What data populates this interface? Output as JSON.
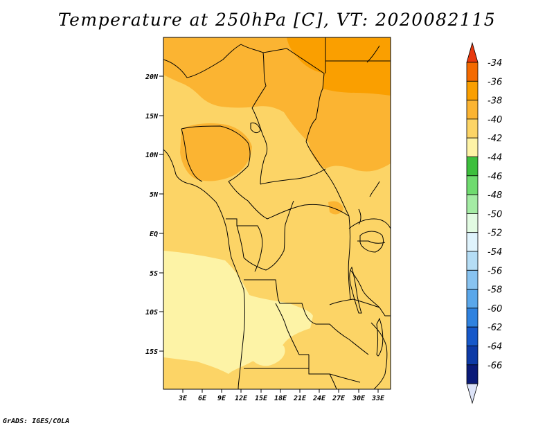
{
  "title": "Temperature at 250hPa [C], VT: 2020082115",
  "footer": "GrADS: IGES/COLA",
  "colors": {
    "band_m34": "#f46a00",
    "band_m36": "#fa9f00",
    "band_m38": "#fbb432",
    "band_m40": "#fcd466",
    "band_m42": "#fdf3a6",
    "background": "#ffffff",
    "border": "#000000"
  },
  "axes": {
    "y_ticks": [
      "20N",
      "15N",
      "10N",
      "5N",
      "EQ",
      "5S",
      "10S",
      "15S"
    ],
    "x_ticks": [
      "3E",
      "6E",
      "9E",
      "12E",
      "15E",
      "18E",
      "21E",
      "24E",
      "27E",
      "30E",
      "33E"
    ]
  },
  "colorbar": {
    "labels": [
      "-34",
      "-36",
      "-38",
      "-40",
      "-42",
      "-44",
      "-46",
      "-48",
      "-50",
      "-52",
      "-54",
      "-56",
      "-58",
      "-60",
      "-62",
      "-64",
      "-66"
    ],
    "colors": [
      "#e8380e",
      "#f46a00",
      "#fa9f00",
      "#fbb432",
      "#fcd466",
      "#fef3a6",
      "#3dbf3d",
      "#6fdb6f",
      "#a4eca4",
      "#e2fbe2",
      "#dff3fc",
      "#b5ddf5",
      "#88c3f0",
      "#5aa7ea",
      "#2f82df",
      "#1658c9",
      "#0d3aa6",
      "#0a1a78",
      "#dce3f8"
    ]
  }
}
